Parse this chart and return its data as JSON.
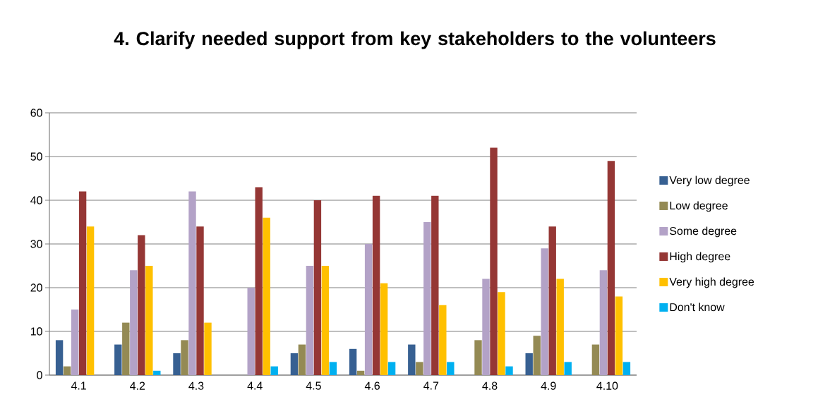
{
  "chart_data": {
    "type": "bar",
    "title": "4. Clarify needed support from key stakeholders to the volunteers",
    "categories": [
      "4.1",
      "4.2",
      "4.3",
      "4.4",
      "4.5",
      "4.6",
      "4.7",
      "4.8",
      "4.9",
      "4.10"
    ],
    "series": [
      {
        "name": "Very low degree",
        "color": "#376092",
        "values": [
          8,
          7,
          5,
          0,
          5,
          6,
          7,
          0,
          5,
          0
        ]
      },
      {
        "name": "Low degree",
        "color": "#948a54",
        "values": [
          2,
          12,
          8,
          0,
          7,
          1,
          3,
          8,
          9,
          7
        ]
      },
      {
        "name": "Some degree",
        "color": "#b3a2c7",
        "values": [
          15,
          24,
          42,
          20,
          25,
          30,
          35,
          22,
          29,
          24
        ]
      },
      {
        "name": "High degree",
        "color": "#953735",
        "values": [
          42,
          32,
          34,
          43,
          40,
          41,
          41,
          52,
          34,
          49
        ]
      },
      {
        "name": "Very high degree",
        "color": "#ffc000",
        "values": [
          34,
          25,
          12,
          36,
          25,
          21,
          16,
          19,
          22,
          18
        ]
      },
      {
        "name": "Don't know",
        "color": "#00b0f0",
        "values": [
          0,
          1,
          0,
          2,
          3,
          3,
          3,
          2,
          3,
          3
        ]
      }
    ],
    "ylim": [
      0,
      60
    ],
    "yticks": [
      0,
      10,
      20,
      30,
      40,
      50,
      60
    ],
    "grid": "y",
    "legend": "right"
  }
}
